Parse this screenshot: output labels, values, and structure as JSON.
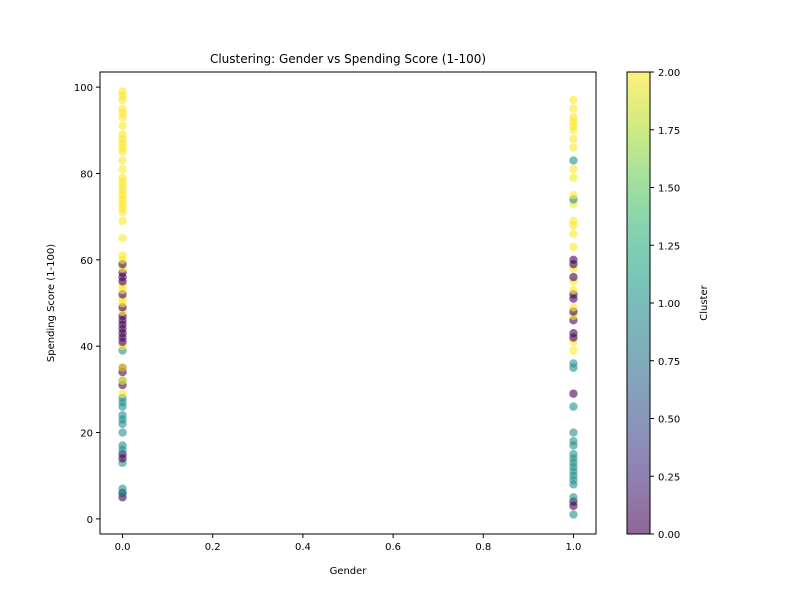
{
  "chart_data": {
    "type": "scatter",
    "title": "Clustering: Gender vs Spending Score (1-100)",
    "xlabel": "Gender",
    "ylabel": "Spending Score (1-100)",
    "xlim": [
      -0.05,
      1.05
    ],
    "ylim": [
      -3.5,
      103.5
    ],
    "x_ticks": [
      0.0,
      0.2,
      0.4,
      0.6,
      0.8,
      1.0
    ],
    "x_tick_labels": [
      "0.0",
      "0.2",
      "0.4",
      "0.6",
      "0.8",
      "1.0"
    ],
    "y_ticks": [
      0,
      20,
      40,
      60,
      80,
      100
    ],
    "y_tick_labels": [
      "0",
      "20",
      "40",
      "60",
      "80",
      "100"
    ],
    "grid": false,
    "marker_opacity": 0.6,
    "colormap": "viridis",
    "colorbar": {
      "label": "Cluster",
      "range": [
        0,
        2
      ],
      "ticks": [
        0,
        0.25,
        0.5,
        0.75,
        1.0,
        1.25,
        1.5,
        1.75,
        2.0
      ],
      "tick_labels": [
        "0.00",
        "0.25",
        "0.50",
        "0.75",
        "1.00",
        "1.25",
        "1.50",
        "1.75",
        "2.00"
      ],
      "stops": [
        "#440154",
        "#482878",
        "#3e4989",
        "#31688e",
        "#26828e",
        "#1f9e89",
        "#35b779",
        "#6ece58",
        "#b5de2b",
        "#fde725"
      ]
    },
    "cluster_colors": {
      "0": "#440154",
      "1": "#21918c",
      "2": "#fde725"
    },
    "points": [
      {
        "x": 0,
        "y": 5,
        "c": 0
      },
      {
        "x": 0,
        "y": 6,
        "c": 0
      },
      {
        "x": 0,
        "y": 6,
        "c": 1
      },
      {
        "x": 0,
        "y": 7,
        "c": 1
      },
      {
        "x": 0,
        "y": 13,
        "c": 1
      },
      {
        "x": 0,
        "y": 14,
        "c": 0
      },
      {
        "x": 0,
        "y": 15,
        "c": 0
      },
      {
        "x": 0,
        "y": 16,
        "c": 1
      },
      {
        "x": 0,
        "y": 17,
        "c": 1
      },
      {
        "x": 0,
        "y": 20,
        "c": 1
      },
      {
        "x": 0,
        "y": 22,
        "c": 1
      },
      {
        "x": 0,
        "y": 23,
        "c": 1
      },
      {
        "x": 0,
        "y": 24,
        "c": 1
      },
      {
        "x": 0,
        "y": 26,
        "c": 1
      },
      {
        "x": 0,
        "y": 27,
        "c": 1
      },
      {
        "x": 0,
        "y": 28,
        "c": 1
      },
      {
        "x": 0,
        "y": 29,
        "c": 2
      },
      {
        "x": 0,
        "y": 31,
        "c": 0
      },
      {
        "x": 0,
        "y": 32,
        "c": 1
      },
      {
        "x": 0,
        "y": 32,
        "c": 2
      },
      {
        "x": 0,
        "y": 34,
        "c": 0
      },
      {
        "x": 0,
        "y": 35,
        "c": 0
      },
      {
        "x": 0,
        "y": 35,
        "c": 2
      },
      {
        "x": 0,
        "y": 39,
        "c": 1
      },
      {
        "x": 0,
        "y": 40,
        "c": 2
      },
      {
        "x": 0,
        "y": 41,
        "c": 0
      },
      {
        "x": 0,
        "y": 42,
        "c": 0
      },
      {
        "x": 0,
        "y": 43,
        "c": 0
      },
      {
        "x": 0,
        "y": 44,
        "c": 0
      },
      {
        "x": 0,
        "y": 45,
        "c": 0
      },
      {
        "x": 0,
        "y": 46,
        "c": 0
      },
      {
        "x": 0,
        "y": 47,
        "c": 0
      },
      {
        "x": 0,
        "y": 48,
        "c": 2
      },
      {
        "x": 0,
        "y": 49,
        "c": 0
      },
      {
        "x": 0,
        "y": 50,
        "c": 2
      },
      {
        "x": 0,
        "y": 51,
        "c": 2
      },
      {
        "x": 0,
        "y": 52,
        "c": 0
      },
      {
        "x": 0,
        "y": 53,
        "c": 2
      },
      {
        "x": 0,
        "y": 54,
        "c": 2
      },
      {
        "x": 0,
        "y": 55,
        "c": 0
      },
      {
        "x": 0,
        "y": 56,
        "c": 0
      },
      {
        "x": 0,
        "y": 57,
        "c": 0
      },
      {
        "x": 0,
        "y": 58,
        "c": 2
      },
      {
        "x": 0,
        "y": 59,
        "c": 0
      },
      {
        "x": 0,
        "y": 60,
        "c": 2
      },
      {
        "x": 0,
        "y": 61,
        "c": 2
      },
      {
        "x": 0,
        "y": 65,
        "c": 2
      },
      {
        "x": 0,
        "y": 69,
        "c": 2
      },
      {
        "x": 0,
        "y": 71,
        "c": 2
      },
      {
        "x": 0,
        "y": 72,
        "c": 2
      },
      {
        "x": 0,
        "y": 73,
        "c": 2
      },
      {
        "x": 0,
        "y": 74,
        "c": 2
      },
      {
        "x": 0,
        "y": 75,
        "c": 2
      },
      {
        "x": 0,
        "y": 76,
        "c": 2
      },
      {
        "x": 0,
        "y": 77,
        "c": 2
      },
      {
        "x": 0,
        "y": 78,
        "c": 2
      },
      {
        "x": 0,
        "y": 79,
        "c": 2
      },
      {
        "x": 0,
        "y": 81,
        "c": 2
      },
      {
        "x": 0,
        "y": 83,
        "c": 2
      },
      {
        "x": 0,
        "y": 85,
        "c": 2
      },
      {
        "x": 0,
        "y": 86,
        "c": 2
      },
      {
        "x": 0,
        "y": 87,
        "c": 2
      },
      {
        "x": 0,
        "y": 88,
        "c": 2
      },
      {
        "x": 0,
        "y": 89,
        "c": 2
      },
      {
        "x": 0,
        "y": 91,
        "c": 2
      },
      {
        "x": 0,
        "y": 93,
        "c": 2
      },
      {
        "x": 0,
        "y": 94,
        "c": 2
      },
      {
        "x": 0,
        "y": 95,
        "c": 2
      },
      {
        "x": 0,
        "y": 97,
        "c": 2
      },
      {
        "x": 0,
        "y": 98,
        "c": 2
      },
      {
        "x": 0,
        "y": 99,
        "c": 2
      },
      {
        "x": 1,
        "y": 1,
        "c": 1
      },
      {
        "x": 1,
        "y": 3,
        "c": 0
      },
      {
        "x": 1,
        "y": 4,
        "c": 0
      },
      {
        "x": 1,
        "y": 5,
        "c": 1
      },
      {
        "x": 1,
        "y": 8,
        "c": 1
      },
      {
        "x": 1,
        "y": 9,
        "c": 1
      },
      {
        "x": 1,
        "y": 10,
        "c": 1
      },
      {
        "x": 1,
        "y": 11,
        "c": 1
      },
      {
        "x": 1,
        "y": 12,
        "c": 1
      },
      {
        "x": 1,
        "y": 13,
        "c": 1
      },
      {
        "x": 1,
        "y": 14,
        "c": 1
      },
      {
        "x": 1,
        "y": 15,
        "c": 1
      },
      {
        "x": 1,
        "y": 17,
        "c": 1
      },
      {
        "x": 1,
        "y": 18,
        "c": 1
      },
      {
        "x": 1,
        "y": 20,
        "c": 1
      },
      {
        "x": 1,
        "y": 26,
        "c": 1
      },
      {
        "x": 1,
        "y": 29,
        "c": 0
      },
      {
        "x": 1,
        "y": 35,
        "c": 1
      },
      {
        "x": 1,
        "y": 36,
        "c": 1
      },
      {
        "x": 1,
        "y": 39,
        "c": 2
      },
      {
        "x": 1,
        "y": 41,
        "c": 2
      },
      {
        "x": 1,
        "y": 42,
        "c": 0
      },
      {
        "x": 1,
        "y": 43,
        "c": 0
      },
      {
        "x": 1,
        "y": 46,
        "c": 0
      },
      {
        "x": 1,
        "y": 47,
        "c": 2
      },
      {
        "x": 1,
        "y": 48,
        "c": 0
      },
      {
        "x": 1,
        "y": 49,
        "c": 2
      },
      {
        "x": 1,
        "y": 51,
        "c": 0
      },
      {
        "x": 1,
        "y": 52,
        "c": 0
      },
      {
        "x": 1,
        "y": 53,
        "c": 2
      },
      {
        "x": 1,
        "y": 55,
        "c": 2
      },
      {
        "x": 1,
        "y": 56,
        "c": 0
      },
      {
        "x": 1,
        "y": 58,
        "c": 2
      },
      {
        "x": 1,
        "y": 59,
        "c": 0
      },
      {
        "x": 1,
        "y": 60,
        "c": 0
      },
      {
        "x": 1,
        "y": 63,
        "c": 2
      },
      {
        "x": 1,
        "y": 66,
        "c": 2
      },
      {
        "x": 1,
        "y": 68,
        "c": 2
      },
      {
        "x": 1,
        "y": 69,
        "c": 2
      },
      {
        "x": 1,
        "y": 73,
        "c": 2
      },
      {
        "x": 1,
        "y": 74,
        "c": 1
      },
      {
        "x": 1,
        "y": 75,
        "c": 2
      },
      {
        "x": 1,
        "y": 79,
        "c": 2
      },
      {
        "x": 1,
        "y": 81,
        "c": 2
      },
      {
        "x": 1,
        "y": 83,
        "c": 1
      },
      {
        "x": 1,
        "y": 86,
        "c": 2
      },
      {
        "x": 1,
        "y": 88,
        "c": 2
      },
      {
        "x": 1,
        "y": 90,
        "c": 2
      },
      {
        "x": 1,
        "y": 91,
        "c": 2
      },
      {
        "x": 1,
        "y": 92,
        "c": 2
      },
      {
        "x": 1,
        "y": 93,
        "c": 2
      },
      {
        "x": 1,
        "y": 95,
        "c": 2
      },
      {
        "x": 1,
        "y": 97,
        "c": 2
      }
    ]
  }
}
